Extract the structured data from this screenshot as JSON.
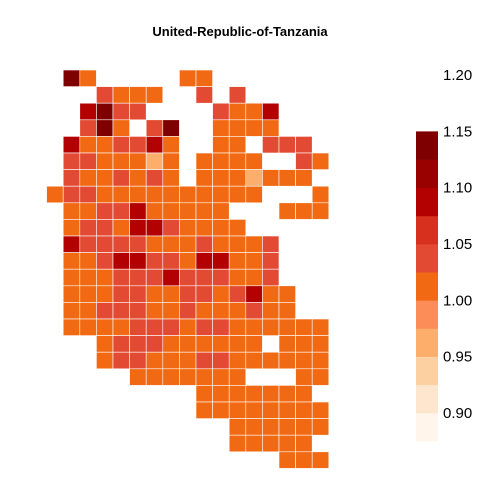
{
  "title": "United-Republic-of-Tanzania",
  "chart_data": {
    "type": "heatmap",
    "title": "United-Republic-of-Tanzania",
    "legend": {
      "breaks": [
        0.875,
        0.9,
        0.925,
        0.95,
        0.975,
        1.0,
        1.025,
        1.05,
        1.075,
        1.1,
        1.125,
        1.15,
        1.175,
        1.2,
        1.225
      ],
      "colors": [
        "#fff5eb",
        "#fee6ce",
        "#fdd0a2",
        "#fdae6b",
        "#fc8d59",
        "#f16913",
        "#e34a33",
        "#d7301f",
        "#b30000",
        "#990000",
        "#7f0000"
      ],
      "tick_labels": [
        "0.90",
        "0.95",
        "1.00",
        "1.05",
        "1.10",
        "1.15",
        "1.20"
      ],
      "tick_values": [
        0.9,
        0.95,
        1.0,
        1.05,
        1.1,
        1.15,
        1.2
      ],
      "placement": "right"
    },
    "grid_rows": [
      "..X1.....11.......",
      "....2111..2.2.....",
      "...3422....2113...",
      "...2X1.2X..1111...",
      "..3112231..11.222.",
      "..2211101.1111..21",
      "..2112121.1110111.",
      ".1221111111111...1",
      "..1122311111...111",
      "..12213321111.....",
      "..3222211121112...",
      "..1123322133112...",
      "..1112223222112...",
      "..11122112212311..",
      "..11222112111211..",
      "..1111222122111111",
      "....1222111111.111",
      "....12211122111111",
      "......1111111...11",
      "..........1111111.",
      "..........11111111",
      "............111111",
      "............11111.",
      "...............111"
    ],
    "value_key": {
      "0": 0.96,
      "1": 1.0,
      "2": 1.04,
      "3": 1.09,
      "4": 1.14,
      "X": 1.22
    }
  }
}
